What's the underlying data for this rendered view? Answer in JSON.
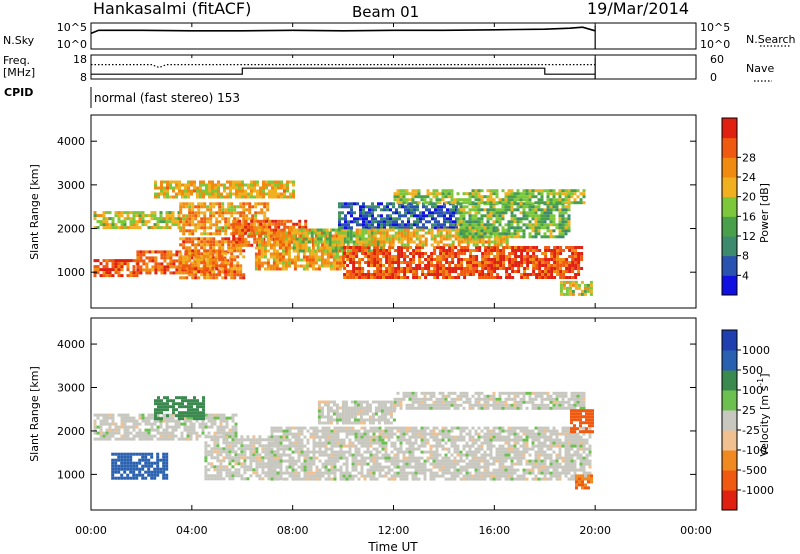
{
  "header": {
    "radar": "Hankasalmi (fitACF)",
    "beam": "Beam 01",
    "date": "19/Mar/2014"
  },
  "strips": {
    "nsky": {
      "label": "N.Sky",
      "left_ticks": [
        "10^5",
        "10^0"
      ],
      "right_ticks": [
        "10^5",
        "10^0"
      ],
      "right_label": "N.Search"
    },
    "freq": {
      "label_line1": "Freq.",
      "label_line2": "[MHz]",
      "left_ticks": [
        "18",
        "8"
      ],
      "right_ticks": [
        "60",
        "0"
      ],
      "right_label": "Nave"
    },
    "cpid": {
      "label": "CPID",
      "text": "normal (fast stereo) 153"
    }
  },
  "axes": {
    "ylabel": "Slant Range [km]",
    "xlabel": "Time UT",
    "yticks": [
      "1000",
      "2000",
      "3000",
      "4000"
    ],
    "xticks": [
      "00:00",
      "04:00",
      "08:00",
      "12:00",
      "16:00",
      "20:00",
      "00:00"
    ]
  },
  "colorbars": {
    "power": {
      "label": "Power [dB]",
      "ticks": [
        "4",
        "8",
        "12",
        "16",
        "20",
        "24",
        "28"
      ],
      "colors": [
        "#1010e0",
        "#2a52b0",
        "#3e8a6e",
        "#4aa04a",
        "#7cc83a",
        "#f0b020",
        "#f08a10",
        "#f05a10",
        "#e02010"
      ]
    },
    "velocity": {
      "label": "Velocity [m s",
      "label_sup": "-1",
      "label_end": "]",
      "ticks": [
        "1000",
        "500",
        "100",
        "25",
        "-25",
        "-100",
        "-500",
        "-1000"
      ],
      "colors": [
        "#1f3fb0",
        "#2a60b0",
        "#3a8a50",
        "#6cc050",
        "#c8c8c0",
        "#f0c090",
        "#f08a20",
        "#f05a10",
        "#e02010"
      ]
    }
  },
  "chart_data": [
    {
      "type": "line",
      "title": "N.Sky / N.Search",
      "xlabel": "",
      "ylabel": "N.Sky",
      "xlim": [
        0,
        24
      ],
      "ylim_log10": [
        0,
        5
      ],
      "series": [
        {
          "x": [
            0,
            0.3,
            2,
            4,
            6,
            8,
            10,
            12,
            14,
            16,
            18,
            19,
            19.5,
            20
          ],
          "y_log10": [
            3.0,
            3.6,
            3.6,
            3.5,
            3.5,
            3.6,
            3.5,
            3.6,
            3.6,
            3.7,
            3.8,
            4.0,
            4.2,
            3.5
          ]
        }
      ]
    },
    {
      "type": "line",
      "title": "Freq / Nave",
      "xlabel": "",
      "ylabel": "Freq [MHz]",
      "xlim": [
        0,
        24
      ],
      "ylim": [
        8,
        18
      ],
      "series": [
        {
          "x": [
            0,
            6,
            6,
            18,
            18,
            20
          ],
          "values": [
            10.0,
            10.0,
            12.5,
            12.5,
            10.0,
            10.0
          ]
        },
        {
          "x": [
            0,
            2.4,
            2.7,
            3.0,
            20
          ],
          "values": [
            14.0,
            14.0,
            12.8,
            14.0,
            14.0
          ]
        }
      ]
    },
    {
      "type": "heatmap",
      "title": "Power",
      "xlabel": "Time UT",
      "ylabel": "Slant Range [km]",
      "xlim": [
        0,
        24
      ],
      "ylim": [
        180,
        4600
      ],
      "value_label": "Power [dB]",
      "clim": [
        0,
        32
      ],
      "bands": [
        {
          "t0": 0.1,
          "t1": 1.8,
          "r0": 900,
          "r1": 1300,
          "value": 28
        },
        {
          "t0": 1.8,
          "t1": 5.6,
          "r0": 1000,
          "r1": 1500,
          "value": 26
        },
        {
          "t0": 3.5,
          "t1": 6.0,
          "r0": 900,
          "r1": 1800,
          "value": 24
        },
        {
          "t0": 0.1,
          "t1": 3.5,
          "r0": 2000,
          "r1": 2400,
          "value": 18
        },
        {
          "t0": 3.5,
          "t1": 7.0,
          "r0": 1900,
          "r1": 2600,
          "value": 22
        },
        {
          "t0": 5.6,
          "t1": 8.5,
          "r0": 1600,
          "r1": 2200,
          "value": 26
        },
        {
          "t0": 6.5,
          "t1": 10.0,
          "r0": 1100,
          "r1": 2000,
          "value": 22
        },
        {
          "t0": 8.0,
          "t1": 11.5,
          "r0": 1500,
          "r1": 2000,
          "value": 16
        },
        {
          "t0": 9.8,
          "t1": 14.5,
          "r0": 2000,
          "r1": 2600,
          "value": 6
        },
        {
          "t0": 10.0,
          "t1": 19.5,
          "r0": 900,
          "r1": 1600,
          "value": 28
        },
        {
          "t0": 10.5,
          "t1": 16.5,
          "r0": 1600,
          "r1": 2000,
          "value": 20
        },
        {
          "t0": 14.5,
          "t1": 19.0,
          "r0": 1800,
          "r1": 2600,
          "value": 14
        },
        {
          "t0": 12.0,
          "t1": 19.5,
          "r0": 2600,
          "r1": 2900,
          "value": 16
        },
        {
          "t0": 2.5,
          "t1": 8.0,
          "r0": 2700,
          "r1": 3100,
          "value": 20
        },
        {
          "t0": 18.6,
          "t1": 19.9,
          "r0": 500,
          "r1": 800,
          "value": 18
        }
      ]
    },
    {
      "type": "heatmap",
      "title": "Velocity",
      "xlabel": "Time UT",
      "ylabel": "Slant Range [km]",
      "xlim": [
        0,
        24
      ],
      "ylim": [
        180,
        4600
      ],
      "value_label": "Velocity [m s-1]",
      "clim": [
        -1000,
        1000
      ],
      "bands": [
        {
          "t0": 0.1,
          "t1": 5.8,
          "r0": 1800,
          "r1": 2400,
          "value": 0
        },
        {
          "t0": 0.8,
          "t1": 3.0,
          "r0": 900,
          "r1": 1500,
          "value": 600
        },
        {
          "t0": 2.5,
          "t1": 4.5,
          "r0": 2300,
          "r1": 2800,
          "value": 400
        },
        {
          "t0": 4.5,
          "t1": 7.5,
          "r0": 900,
          "r1": 1900,
          "value": 0
        },
        {
          "t0": 7.0,
          "t1": 19.8,
          "r0": 900,
          "r1": 2100,
          "value": 0
        },
        {
          "t0": 9.0,
          "t1": 12.0,
          "r0": 2200,
          "r1": 2700,
          "value": 0
        },
        {
          "t0": 12.0,
          "t1": 19.5,
          "r0": 2500,
          "r1": 2900,
          "value": 0
        },
        {
          "t0": 19.0,
          "t1": 19.9,
          "r0": 2000,
          "r1": 2500,
          "value": -800
        },
        {
          "t0": 19.2,
          "t1": 19.9,
          "r0": 700,
          "r1": 1000,
          "value": -500
        }
      ]
    }
  ]
}
